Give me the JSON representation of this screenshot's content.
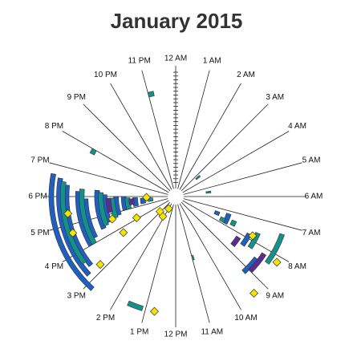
{
  "chart_data": {
    "type": "radial-clock",
    "title": "January 2015",
    "categories": [
      "12 AM",
      "1 AM",
      "2 AM",
      "3 AM",
      "4 AM",
      "5 AM",
      "6 AM",
      "7 AM",
      "8 AM",
      "9 AM",
      "10 AM",
      "11 AM",
      "12 PM",
      "1 PM",
      "2 PM",
      "3 PM",
      "4 PM",
      "5 PM",
      "6 PM",
      "7 PM",
      "8 PM",
      "9 PM",
      "10 PM",
      "11 PM"
    ],
    "rlim": [
      0,
      31
    ],
    "rticks": [
      2,
      3,
      4,
      5,
      6,
      7,
      8,
      9,
      10,
      11,
      12,
      13,
      14,
      15,
      16,
      17,
      18,
      19,
      20,
      21,
      22,
      23,
      24,
      25,
      26,
      27,
      28,
      29,
      30,
      31
    ],
    "series": [
      {
        "color": "#1f5fbf",
        "days": [
          31,
          29,
          27,
          24,
          22,
          19,
          17,
          14,
          12,
          9,
          7,
          25,
          20,
          13,
          10
        ],
        "start": [
          14.8,
          15.2,
          15.4,
          16.0,
          16.2,
          16.4,
          16.6,
          16.8,
          17.0,
          17.1,
          17.2,
          8.5,
          7.8,
          7.2,
          7.3
        ],
        "end": [
          18.7,
          18.6,
          18.4,
          18.2,
          17.9,
          18.3,
          18.1,
          18.0,
          18.0,
          17.9,
          17.8,
          9.2,
          8.4,
          7.9,
          7.6
        ]
      },
      {
        "color": "#14918a",
        "days": [
          28,
          23,
          18,
          15,
          11,
          5,
          28,
          22,
          15,
          12,
          26,
          23,
          29,
          15,
          6,
          7
        ],
        "start": [
          15.6,
          16.0,
          16.5,
          16.7,
          17.0,
          17.3,
          7.3,
          7.6,
          7.5,
          7.6,
          23.0,
          19.8,
          13.1,
          10.9,
          3.2,
          5.4
        ],
        "end": [
          18.5,
          18.3,
          18.2,
          17.9,
          17.9,
          17.8,
          8.4,
          8.3,
          7.8,
          7.9,
          23.2,
          20.0,
          13.6,
          11.0,
          3.4,
          5.6
        ]
      },
      {
        "color": "#5b2d91",
        "days": [
          16,
          10,
          26,
          18
        ],
        "start": [
          17.1,
          17.3,
          8.2,
          8.2
        ],
        "end": [
          17.9,
          17.8,
          9.0,
          8.7
        ]
      }
    ],
    "points": {
      "color": "#f5e400",
      "days": [
        29,
        31,
        25,
        27,
        27,
        30,
        21,
        15,
        16,
        6,
        10,
        4.5,
        2,
        4
      ],
      "hours": [
        12.7,
        9.4,
        15.2,
        16.7,
        17.4,
        8.2,
        7.8,
        15.7,
        16.7,
        17.9,
        16.1,
        14.2,
        14.0,
        15.1
      ]
    }
  }
}
